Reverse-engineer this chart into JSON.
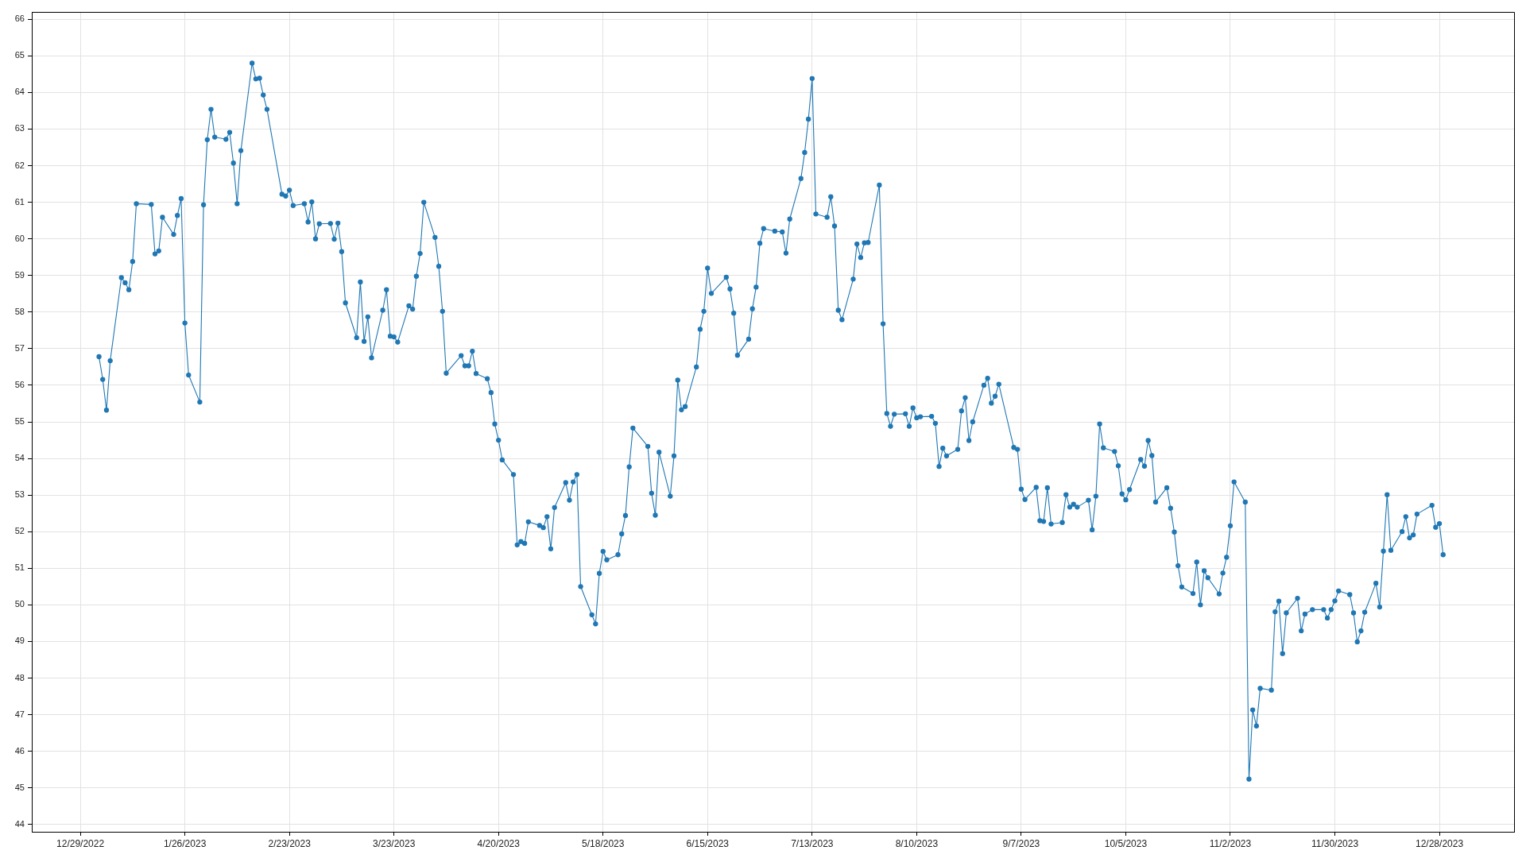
{
  "chart_data": {
    "type": "line",
    "color": "#1f77b4",
    "marker": "circle",
    "line_style": "solid",
    "grid": true,
    "xlim": [
      "2022-12-16",
      "2024-01-17"
    ],
    "xticks": [
      {
        "value": "2022-12-29",
        "label": "12/29/2022"
      },
      {
        "value": "2023-01-26",
        "label": "1/26/2023"
      },
      {
        "value": "2023-02-23",
        "label": "2/23/2023"
      },
      {
        "value": "2023-03-23",
        "label": "3/23/2023"
      },
      {
        "value": "2023-04-20",
        "label": "4/20/2023"
      },
      {
        "value": "2023-05-18",
        "label": "5/18/2023"
      },
      {
        "value": "2023-06-15",
        "label": "6/15/2023"
      },
      {
        "value": "2023-07-13",
        "label": "7/13/2023"
      },
      {
        "value": "2023-08-10",
        "label": "8/10/2023"
      },
      {
        "value": "2023-09-07",
        "label": "9/7/2023"
      },
      {
        "value": "2023-10-05",
        "label": "10/5/2023"
      },
      {
        "value": "2023-11-02",
        "label": "11/2/2023"
      },
      {
        "value": "2023-11-30",
        "label": "11/30/2023"
      },
      {
        "value": "2023-12-28",
        "label": "12/28/2023"
      }
    ],
    "ylim": [
      43.8,
      66.2
    ],
    "yticks": [
      44,
      45,
      46,
      47,
      48,
      49,
      50,
      51,
      52,
      53,
      54,
      55,
      56,
      57,
      58,
      59,
      60,
      61,
      62,
      63,
      64,
      65,
      66
    ],
    "x": [
      "2023-01-03",
      "2023-01-04",
      "2023-01-05",
      "2023-01-06",
      "2023-01-09",
      "2023-01-10",
      "2023-01-11",
      "2023-01-12",
      "2023-01-13",
      "2023-01-17",
      "2023-01-18",
      "2023-01-19",
      "2023-01-20",
      "2023-01-23",
      "2023-01-24",
      "2023-01-25",
      "2023-01-26",
      "2023-01-27",
      "2023-01-30",
      "2023-01-31",
      "2023-02-01",
      "2023-02-02",
      "2023-02-03",
      "2023-02-06",
      "2023-02-07",
      "2023-02-08",
      "2023-02-09",
      "2023-02-10",
      "2023-02-13",
      "2023-02-14",
      "2023-02-15",
      "2023-02-16",
      "2023-02-17",
      "2023-02-21",
      "2023-02-22",
      "2023-02-23",
      "2023-02-24",
      "2023-02-27",
      "2023-02-28",
      "2023-03-01",
      "2023-03-02",
      "2023-03-03",
      "2023-03-06",
      "2023-03-07",
      "2023-03-08",
      "2023-03-09",
      "2023-03-10",
      "2023-03-13",
      "2023-03-14",
      "2023-03-15",
      "2023-03-16",
      "2023-03-17",
      "2023-03-20",
      "2023-03-21",
      "2023-03-22",
      "2023-03-23",
      "2023-03-24",
      "2023-03-27",
      "2023-03-28",
      "2023-03-29",
      "2023-03-30",
      "2023-03-31",
      "2023-04-03",
      "2023-04-04",
      "2023-04-05",
      "2023-04-06",
      "2023-04-10",
      "2023-04-11",
      "2023-04-12",
      "2023-04-13",
      "2023-04-14",
      "2023-04-17",
      "2023-04-18",
      "2023-04-19",
      "2023-04-20",
      "2023-04-21",
      "2023-04-24",
      "2023-04-25",
      "2023-04-26",
      "2023-04-27",
      "2023-04-28",
      "2023-05-01",
      "2023-05-02",
      "2023-05-03",
      "2023-05-04",
      "2023-05-05",
      "2023-05-08",
      "2023-05-09",
      "2023-05-10",
      "2023-05-11",
      "2023-05-12",
      "2023-05-15",
      "2023-05-16",
      "2023-05-17",
      "2023-05-18",
      "2023-05-19",
      "2023-05-22",
      "2023-05-23",
      "2023-05-24",
      "2023-05-25",
      "2023-05-26",
      "2023-05-30",
      "2023-05-31",
      "2023-06-01",
      "2023-06-02",
      "2023-06-05",
      "2023-06-06",
      "2023-06-07",
      "2023-06-08",
      "2023-06-09",
      "2023-06-12",
      "2023-06-13",
      "2023-06-14",
      "2023-06-15",
      "2023-06-16",
      "2023-06-20",
      "2023-06-21",
      "2023-06-22",
      "2023-06-23",
      "2023-06-26",
      "2023-06-27",
      "2023-06-28",
      "2023-06-29",
      "2023-06-30",
      "2023-07-03",
      "2023-07-05",
      "2023-07-06",
      "2023-07-07",
      "2023-07-10",
      "2023-07-11",
      "2023-07-12",
      "2023-07-13",
      "2023-07-14",
      "2023-07-17",
      "2023-07-18",
      "2023-07-19",
      "2023-07-20",
      "2023-07-21",
      "2023-07-24",
      "2023-07-25",
      "2023-07-26",
      "2023-07-27",
      "2023-07-28",
      "2023-07-31",
      "2023-08-01",
      "2023-08-02",
      "2023-08-03",
      "2023-08-04",
      "2023-08-07",
      "2023-08-08",
      "2023-08-09",
      "2023-08-10",
      "2023-08-11",
      "2023-08-14",
      "2023-08-15",
      "2023-08-16",
      "2023-08-17",
      "2023-08-18",
      "2023-08-21",
      "2023-08-22",
      "2023-08-23",
      "2023-08-24",
      "2023-08-25",
      "2023-08-28",
      "2023-08-29",
      "2023-08-30",
      "2023-08-31",
      "2023-09-01",
      "2023-09-05",
      "2023-09-06",
      "2023-09-07",
      "2023-09-08",
      "2023-09-11",
      "2023-09-12",
      "2023-09-13",
      "2023-09-14",
      "2023-09-15",
      "2023-09-18",
      "2023-09-19",
      "2023-09-20",
      "2023-09-21",
      "2023-09-22",
      "2023-09-25",
      "2023-09-26",
      "2023-09-27",
      "2023-09-28",
      "2023-09-29",
      "2023-10-02",
      "2023-10-03",
      "2023-10-04",
      "2023-10-05",
      "2023-10-06",
      "2023-10-09",
      "2023-10-10",
      "2023-10-11",
      "2023-10-12",
      "2023-10-13",
      "2023-10-16",
      "2023-10-17",
      "2023-10-18",
      "2023-10-19",
      "2023-10-20",
      "2023-10-23",
      "2023-10-24",
      "2023-10-25",
      "2023-10-26",
      "2023-10-27",
      "2023-10-30",
      "2023-10-31",
      "2023-11-01",
      "2023-11-02",
      "2023-11-03",
      "2023-11-06",
      "2023-11-07",
      "2023-11-08",
      "2023-11-09",
      "2023-11-10",
      "2023-11-13",
      "2023-11-14",
      "2023-11-15",
      "2023-11-16",
      "2023-11-17",
      "2023-11-20",
      "2023-11-21",
      "2023-11-22",
      "2023-11-24",
      "2023-11-27",
      "2023-11-28",
      "2023-11-29",
      "2023-11-30",
      "2023-12-01",
      "2023-12-04",
      "2023-12-05",
      "2023-12-06",
      "2023-12-07",
      "2023-12-08",
      "2023-12-11",
      "2023-12-12",
      "2023-12-13",
      "2023-12-14",
      "2023-12-15",
      "2023-12-18",
      "2023-12-19",
      "2023-12-20",
      "2023-12-21",
      "2023-12-22",
      "2023-12-26",
      "2023-12-27",
      "2023-12-28",
      "2023-12-29"
    ],
    "values": [
      56.78,
      56.16,
      55.32,
      56.67,
      58.94,
      58.8,
      58.61,
      59.38,
      60.96,
      60.94,
      59.59,
      59.67,
      60.59,
      60.12,
      60.64,
      61.1,
      57.7,
      56.28,
      55.54,
      60.93,
      62.71,
      63.54,
      62.78,
      62.72,
      62.91,
      62.07,
      60.96,
      62.41,
      64.8,
      64.37,
      64.39,
      63.93,
      63.54,
      61.22,
      61.17,
      61.33,
      60.91,
      60.96,
      60.46,
      61.01,
      60.0,
      60.41,
      60.42,
      59.99,
      60.43,
      59.65,
      58.25,
      57.3,
      58.82,
      57.2,
      57.87,
      56.75,
      58.05,
      58.61,
      57.34,
      57.32,
      57.18,
      58.17,
      58.08,
      58.98,
      59.6,
      61.0,
      60.04,
      59.25,
      58.02,
      56.33,
      56.81,
      56.53,
      56.53,
      56.93,
      56.32,
      56.18,
      55.8,
      54.94,
      54.5,
      53.96,
      53.56,
      51.64,
      51.73,
      51.68,
      52.27,
      52.17,
      52.11,
      52.41,
      51.53,
      52.66,
      53.34,
      52.86,
      53.36,
      53.56,
      50.5,
      49.73,
      49.48,
      50.86,
      51.46,
      51.23,
      51.37,
      51.94,
      52.44,
      53.77,
      54.83,
      54.33,
      53.05,
      52.45,
      54.17,
      52.97,
      54.07,
      56.14,
      55.33,
      55.42,
      56.5,
      57.53,
      58.02,
      59.2,
      58.51,
      58.95,
      58.63,
      57.97,
      56.82,
      57.26,
      58.09,
      58.68,
      59.88,
      60.28,
      60.21,
      60.19,
      59.61,
      60.54,
      61.65,
      62.36,
      63.27,
      64.38,
      60.68,
      60.59,
      61.15,
      60.35,
      58.05,
      57.79,
      58.9,
      59.86,
      59.49,
      59.89,
      59.9,
      61.47,
      57.68,
      55.23,
      54.88,
      55.21,
      55.22,
      54.88,
      55.38,
      55.11,
      55.14,
      55.15,
      54.96,
      53.78,
      54.28,
      54.07,
      54.25,
      55.3,
      55.66,
      54.49,
      55.0,
      56.0,
      56.19,
      55.51,
      55.7,
      56.03,
      54.3,
      54.25,
      53.16,
      52.88,
      53.21,
      52.3,
      52.28,
      53.2,
      52.21,
      52.25,
      53.01,
      52.67,
      52.75,
      52.67,
      52.86,
      52.05,
      52.97,
      54.94,
      54.29,
      54.19,
      53.8,
      53.03,
      52.87,
      53.15,
      53.97,
      53.79,
      54.49,
      54.08,
      52.81,
      53.2,
      52.64,
      51.99,
      51.07,
      50.49,
      50.31,
      51.17,
      50.0,
      50.93,
      50.74,
      50.3,
      50.87,
      51.3,
      52.16,
      53.36,
      52.81,
      45.24,
      47.13,
      46.69,
      47.72,
      47.67,
      49.81,
      50.1,
      48.67,
      49.78,
      50.18,
      49.29,
      49.75,
      49.87,
      49.87,
      49.64,
      49.87,
      50.11,
      50.38,
      50.28,
      49.78,
      48.99,
      49.29,
      49.8,
      50.59,
      49.94,
      51.47,
      53.01,
      51.49,
      52.0,
      52.41,
      51.83,
      51.91,
      52.48,
      52.72,
      52.12,
      52.22,
      51.37
    ]
  }
}
